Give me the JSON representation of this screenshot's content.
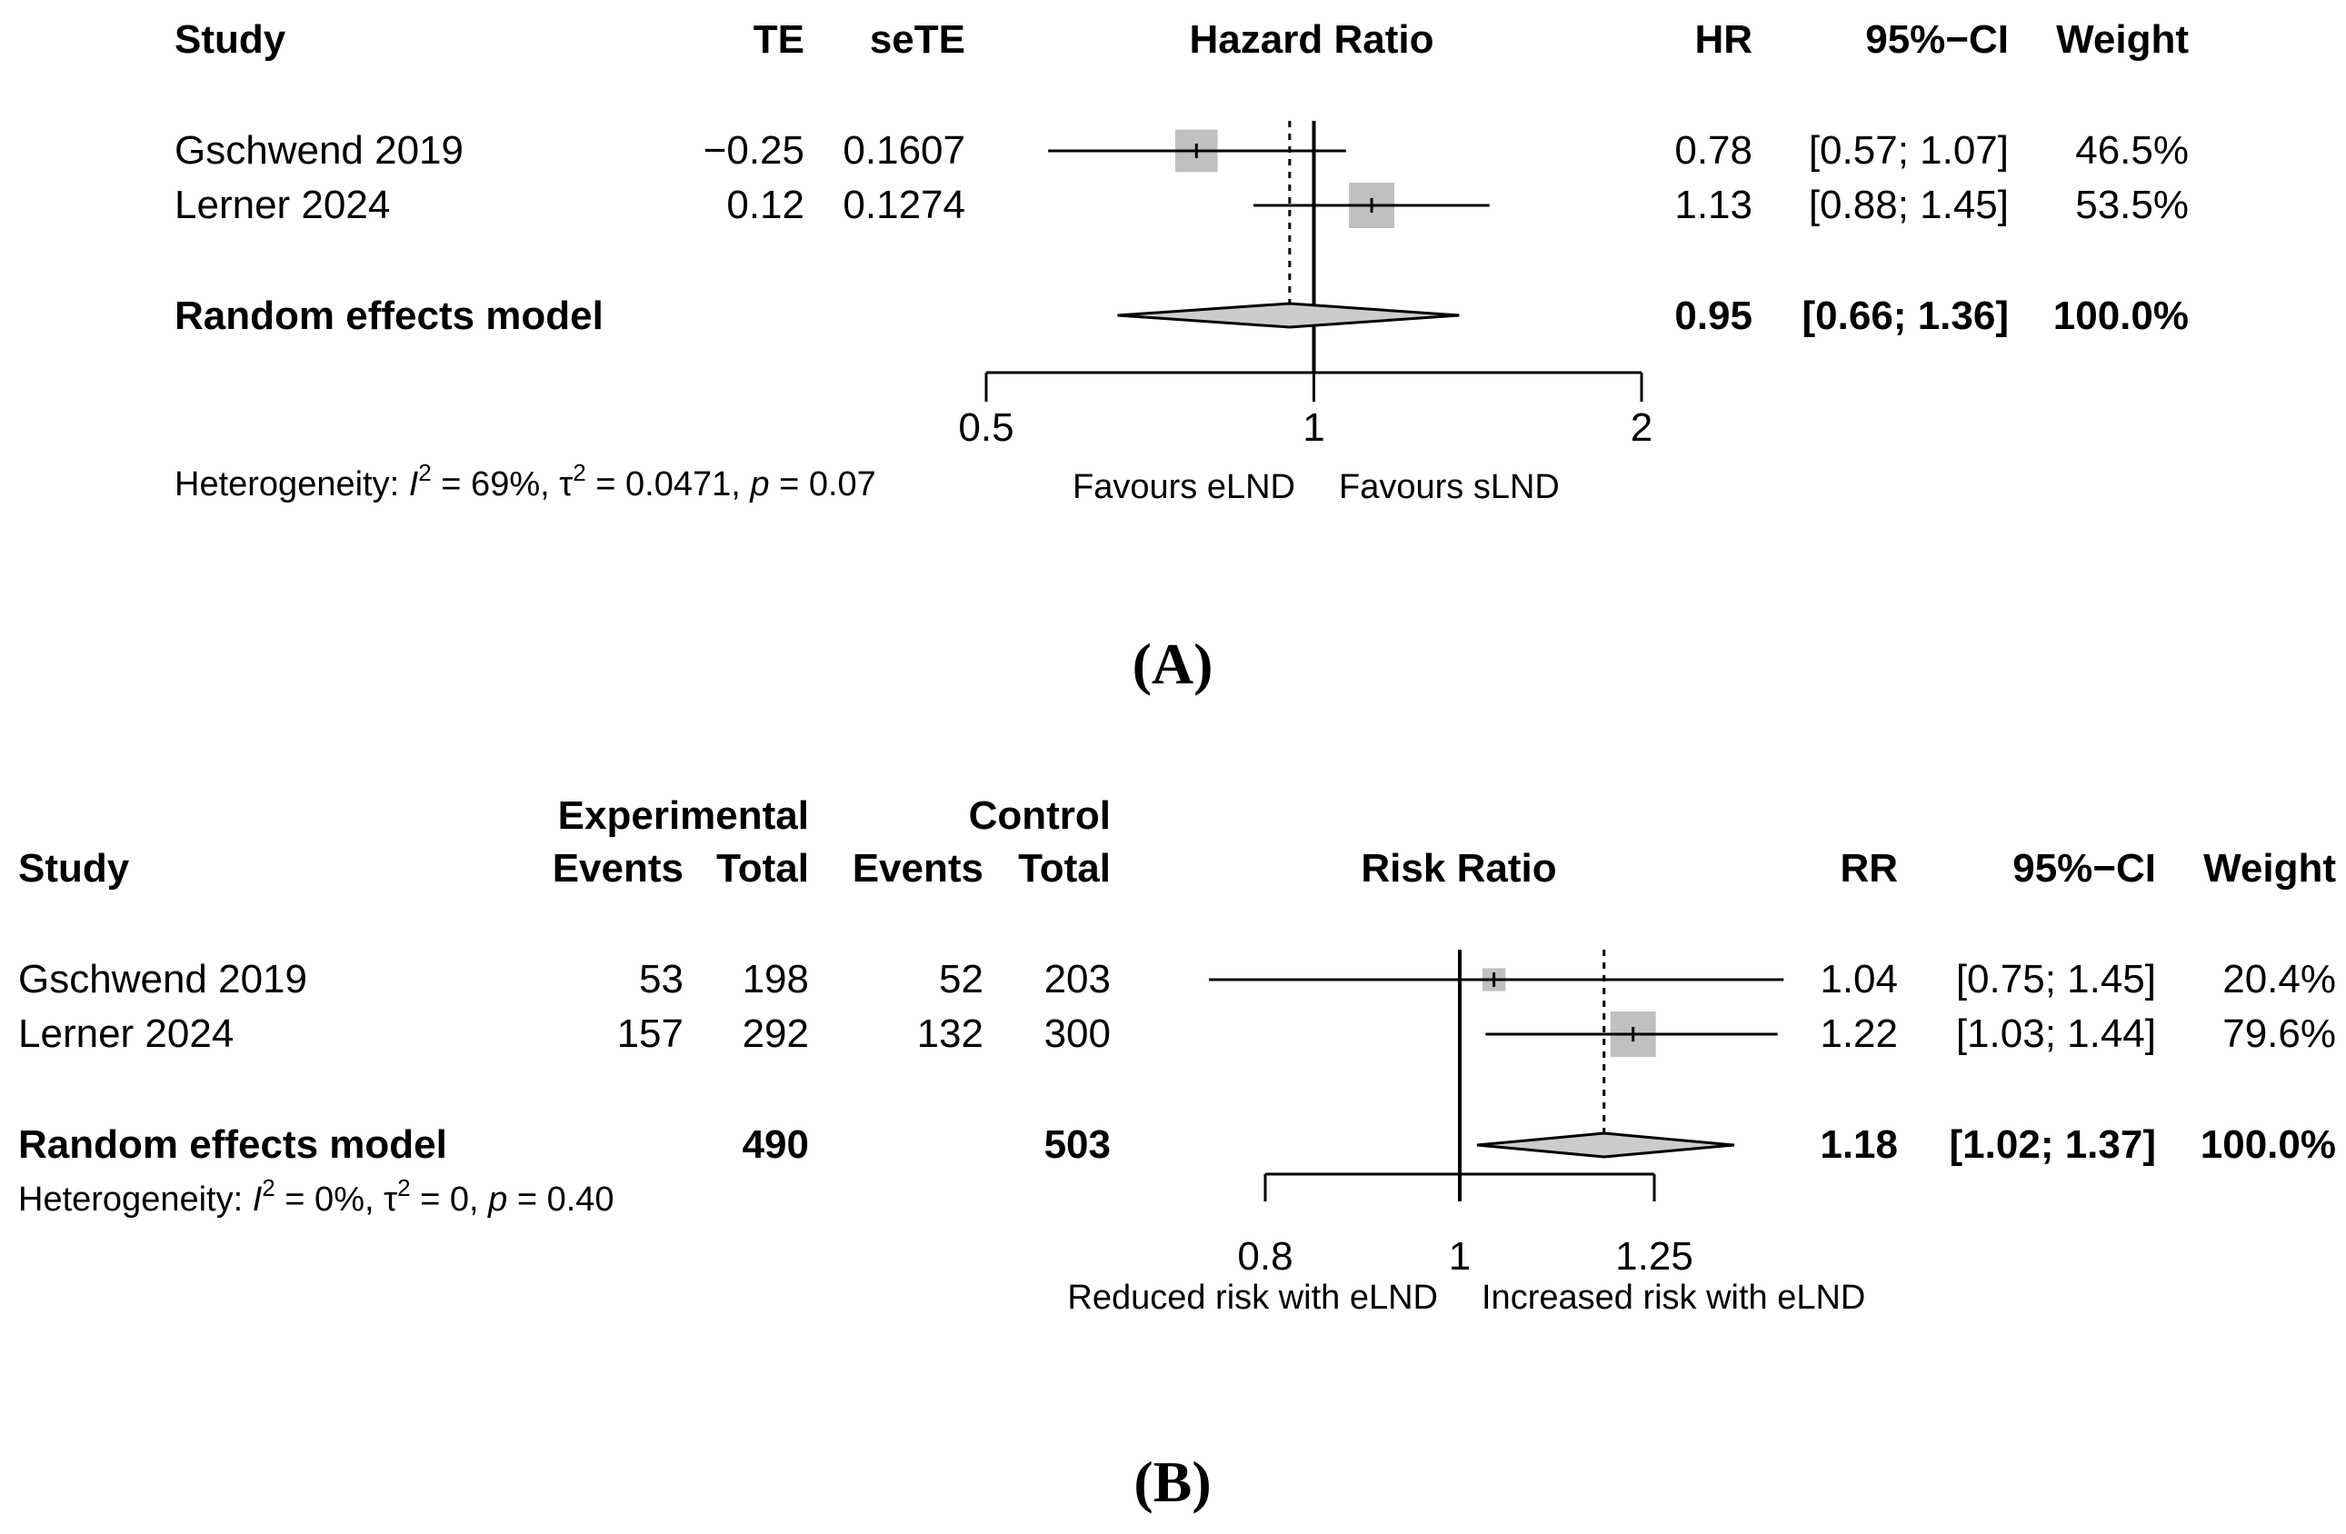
{
  "panels": [
    {
      "id": "A",
      "label": "(A)",
      "headers": [
        "Study",
        "TE",
        "seTE",
        "Hazard Ratio",
        "HR",
        "95%−CI",
        "Weight"
      ],
      "rows": [
        {
          "study": "Gschwend 2019",
          "te": "−0.25",
          "sete": "0.1607",
          "est": "0.78",
          "ci": "[0.57; 1.07]",
          "weight": "46.5%"
        },
        {
          "study": "Lerner 2024",
          "te": "0.12",
          "sete": "0.1274",
          "est": "1.13",
          "ci": "[0.88; 1.45]",
          "weight": "53.5%"
        }
      ],
      "model": {
        "label": "Random effects model",
        "est": "0.95",
        "ci": "[0.66; 1.36]",
        "weight": "100.0%"
      },
      "heterogeneity": {
        "prefix": "Heterogeneity: ",
        "i2_symbol": "I",
        "i2_value": " = 69%, ",
        "tau_symbol": "τ",
        "tau_value": " = 0.0471, ",
        "p_symbol": "p",
        "p_value": " = 0.07"
      },
      "favours": [
        "Favours eLND",
        "Favours sLND"
      ]
    },
    {
      "id": "B",
      "label": "(B)",
      "group_headers": [
        "Experimental",
        "Control"
      ],
      "headers": [
        "Study",
        "Events",
        "Total",
        "Events",
        "Total",
        "Risk Ratio",
        "RR",
        "95%−CI",
        "Weight"
      ],
      "rows": [
        {
          "study": "Gschwend 2019",
          "e_events": "53",
          "e_total": "198",
          "c_events": "52",
          "c_total": "203",
          "est": "1.04",
          "ci": "[0.75; 1.45]",
          "weight": "20.4%"
        },
        {
          "study": "Lerner 2024",
          "e_events": "157",
          "e_total": "292",
          "c_events": "132",
          "c_total": "300",
          "est": "1.22",
          "ci": "[1.03; 1.44]",
          "weight": "79.6%"
        }
      ],
      "model": {
        "label": "Random effects model",
        "e_total": "490",
        "c_total": "503",
        "est": "1.18",
        "ci": "[1.02; 1.37]",
        "weight": "100.0%"
      },
      "heterogeneity": {
        "prefix": "Heterogeneity: ",
        "i2_symbol": "I",
        "i2_value": " = 0%, ",
        "tau_symbol": "τ",
        "tau_value": " = 0, ",
        "p_symbol": "p",
        "p_value": " = 0.40"
      },
      "favours": [
        "Reduced risk with eLND",
        "Increased risk with eLND"
      ]
    }
  ],
  "chart_data": [
    {
      "type": "forest",
      "title": "",
      "xlabel": "Hazard Ratio",
      "scale": "log",
      "xlim": [
        0.5,
        2
      ],
      "ticks": [
        0.5,
        1,
        2
      ],
      "tick_labels": [
        "0.5",
        "1",
        "2"
      ],
      "null_value": 1,
      "studies": [
        {
          "name": "Gschwend 2019",
          "estimate": 0.78,
          "lower": 0.57,
          "upper": 1.07,
          "weight": 46.5
        },
        {
          "name": "Lerner 2024",
          "estimate": 1.13,
          "lower": 0.88,
          "upper": 1.45,
          "weight": 53.5
        }
      ],
      "pooled": {
        "name": "Random effects model",
        "estimate": 0.95,
        "lower": 0.66,
        "upper": 1.36
      }
    },
    {
      "type": "forest",
      "title": "",
      "xlabel": "Risk Ratio",
      "scale": "log",
      "xlim": [
        0.8,
        1.25
      ],
      "ticks": [
        0.8,
        1,
        1.25
      ],
      "tick_labels": [
        "0.8",
        "1",
        "1.25"
      ],
      "null_value": 1,
      "studies": [
        {
          "name": "Gschwend 2019",
          "estimate": 1.04,
          "lower": 0.75,
          "upper": 1.45,
          "weight": 20.4
        },
        {
          "name": "Lerner 2024",
          "estimate": 1.22,
          "lower": 1.03,
          "upper": 1.44,
          "weight": 79.6
        }
      ],
      "pooled": {
        "name": "Random effects model",
        "estimate": 1.18,
        "lower": 1.02,
        "upper": 1.37
      }
    }
  ],
  "colors": {
    "square": "#c0c0c0",
    "diamond": "#cccccc",
    "line": "#000000"
  }
}
